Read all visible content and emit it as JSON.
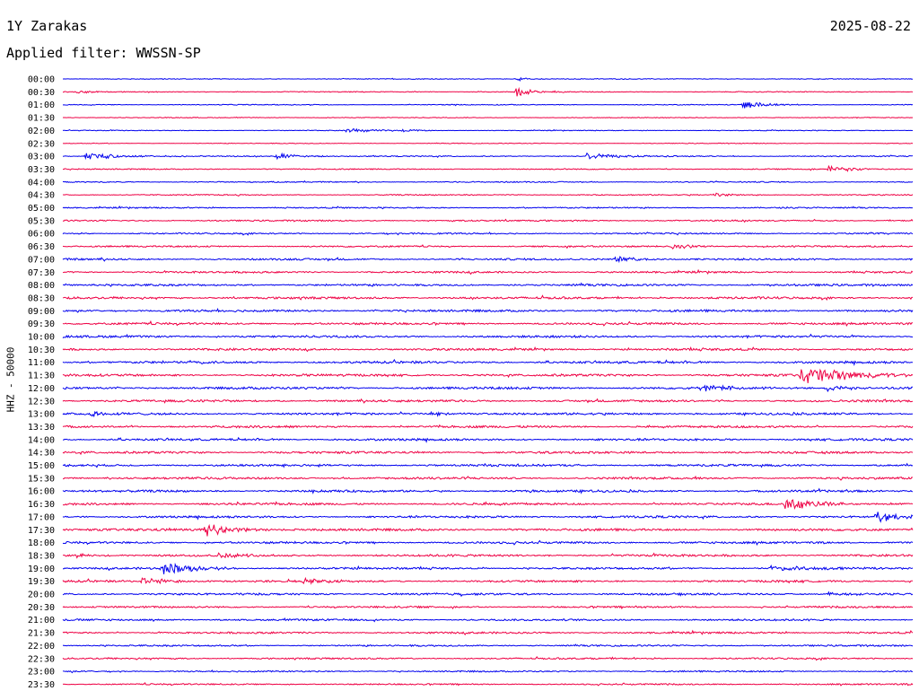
{
  "header": {
    "station": "1Y Zarakas",
    "date": "2025-08-22",
    "filter_label": "Applied filter: WWSSN-SP"
  },
  "axis": {
    "channel_label": "HHZ - 50000"
  },
  "colors": {
    "trace_a": "#0000ee",
    "trace_b": "#ee0044",
    "background": "#ffffff"
  },
  "chart_data": {
    "type": "line",
    "title": "1Y Zarakas",
    "subtitle": "Applied filter: WWSSN-SP",
    "ylabel": "HHZ - 50000",
    "date": "2025-08-22",
    "row_interval_minutes": 30,
    "rows": [
      "00:00",
      "00:30",
      "01:00",
      "01:30",
      "02:00",
      "02:30",
      "03:00",
      "03:30",
      "04:00",
      "04:30",
      "05:00",
      "05:30",
      "06:00",
      "06:30",
      "07:00",
      "07:30",
      "08:00",
      "08:30",
      "09:00",
      "09:30",
      "10:00",
      "10:30",
      "11:00",
      "11:30",
      "12:00",
      "12:30",
      "13:00",
      "13:30",
      "14:00",
      "14:30",
      "15:00",
      "15:30",
      "16:00",
      "16:30",
      "17:00",
      "17:30",
      "18:00",
      "18:30",
      "19:00",
      "19:30",
      "20:00",
      "20:30",
      "21:00",
      "21:30",
      "22:00",
      "22:30",
      "23:00",
      "23:30"
    ],
    "series": [
      {
        "color": "#0000ee",
        "rows": "even"
      },
      {
        "color": "#ee0044",
        "rows": "odd"
      }
    ],
    "row_noise_level": [
      0.1,
      0.12,
      0.12,
      0.1,
      0.1,
      0.1,
      0.15,
      0.15,
      0.15,
      0.15,
      0.18,
      0.2,
      0.2,
      0.22,
      0.25,
      0.25,
      0.28,
      0.3,
      0.3,
      0.3,
      0.3,
      0.3,
      0.32,
      0.32,
      0.32,
      0.3,
      0.3,
      0.3,
      0.3,
      0.3,
      0.3,
      0.3,
      0.3,
      0.3,
      0.3,
      0.32,
      0.3,
      0.3,
      0.28,
      0.28,
      0.28,
      0.25,
      0.25,
      0.25,
      0.22,
      0.22,
      0.2,
      0.2
    ],
    "events": [
      {
        "row": 0,
        "minute": 16.0,
        "amplitude": 0.6,
        "duration": 0.8
      },
      {
        "row": 1,
        "minute": 0.5,
        "amplitude": 0.4,
        "duration": 1.2
      },
      {
        "row": 1,
        "minute": 16.0,
        "amplitude": 1.6,
        "duration": 0.8
      },
      {
        "row": 2,
        "minute": 24.0,
        "amplitude": 1.0,
        "duration": 1.5
      },
      {
        "row": 4,
        "minute": 10.0,
        "amplitude": 0.7,
        "duration": 1.5
      },
      {
        "row": 4,
        "minute": 12.0,
        "amplitude": 0.5,
        "duration": 1.0
      },
      {
        "row": 6,
        "minute": 0.8,
        "amplitude": 1.1,
        "duration": 2.0
      },
      {
        "row": 6,
        "minute": 7.5,
        "amplitude": 0.8,
        "duration": 1.5
      },
      {
        "row": 6,
        "minute": 18.5,
        "amplitude": 0.9,
        "duration": 1.8
      },
      {
        "row": 7,
        "minute": 27.0,
        "amplitude": 0.8,
        "duration": 2.0
      },
      {
        "row": 9,
        "minute": 23.0,
        "amplitude": 0.7,
        "duration": 1.0
      },
      {
        "row": 13,
        "minute": 21.5,
        "amplitude": 0.9,
        "duration": 1.5
      },
      {
        "row": 14,
        "minute": 19.5,
        "amplitude": 0.8,
        "duration": 1.5
      },
      {
        "row": 22,
        "minute": 4.5,
        "amplitude": 0.5,
        "duration": 1.0
      },
      {
        "row": 23,
        "minute": 26.0,
        "amplitude": 2.4,
        "duration": 3.5
      },
      {
        "row": 24,
        "minute": 22.5,
        "amplitude": 0.9,
        "duration": 2.0
      },
      {
        "row": 24,
        "minute": 27.0,
        "amplitude": 0.8,
        "duration": 1.5
      },
      {
        "row": 26,
        "minute": 1.0,
        "amplitude": 1.0,
        "duration": 1.0
      },
      {
        "row": 26,
        "minute": 13.0,
        "amplitude": 0.6,
        "duration": 1.5
      },
      {
        "row": 33,
        "minute": 25.5,
        "amplitude": 1.8,
        "duration": 2.0
      },
      {
        "row": 34,
        "minute": 28.7,
        "amplitude": 1.5,
        "duration": 1.5
      },
      {
        "row": 35,
        "minute": 5.0,
        "amplitude": 1.8,
        "duration": 1.8
      },
      {
        "row": 37,
        "minute": 0.5,
        "amplitude": 0.6,
        "duration": 1.5
      },
      {
        "row": 37,
        "minute": 5.5,
        "amplitude": 0.6,
        "duration": 1.5
      },
      {
        "row": 38,
        "minute": 3.5,
        "amplitude": 1.6,
        "duration": 2.0
      },
      {
        "row": 38,
        "minute": 25.0,
        "amplitude": 0.8,
        "duration": 2.5
      },
      {
        "row": 39,
        "minute": 2.8,
        "amplitude": 1.0,
        "duration": 2.0
      },
      {
        "row": 39,
        "minute": 8.5,
        "amplitude": 0.7,
        "duration": 2.0
      },
      {
        "row": 40,
        "minute": 27.0,
        "amplitude": 0.5,
        "duration": 1.5
      }
    ]
  }
}
